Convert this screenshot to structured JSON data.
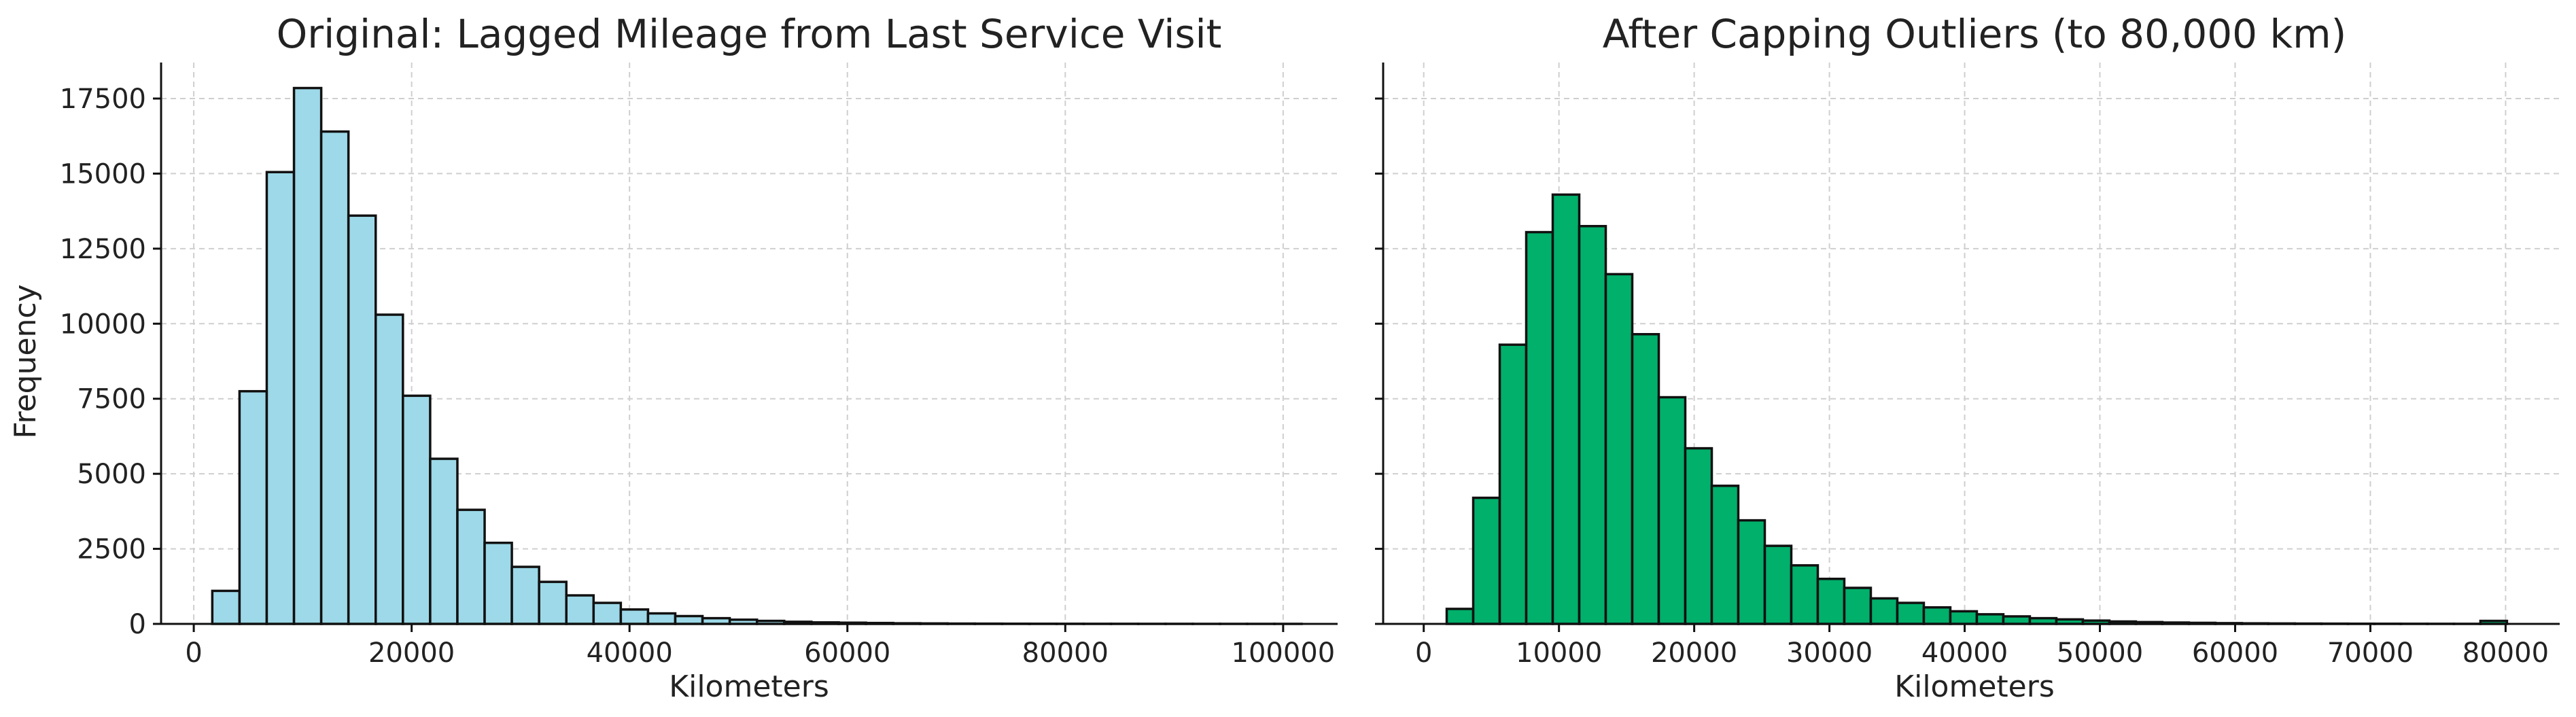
{
  "chart_data": [
    {
      "type": "bar",
      "title": "Original: Lagged Mileage from Last Service Visit",
      "xlabel": "Kilometers",
      "ylabel": "Frequency",
      "color": "#9dd9e8",
      "edge_color": "#111111",
      "xlim": [
        -3000,
        105000
      ],
      "ylim": [
        0,
        18700
      ],
      "xticks": [
        0,
        20000,
        40000,
        60000,
        80000,
        100000
      ],
      "yticks": [
        0,
        2500,
        5000,
        7500,
        10000,
        12500,
        15000,
        17500
      ],
      "grid": true,
      "bin_start": 1700,
      "bin_width": 2500,
      "values": [
        1100,
        7750,
        15050,
        17850,
        16400,
        13600,
        10300,
        7600,
        5500,
        3800,
        2700,
        1900,
        1400,
        950,
        700,
        480,
        350,
        260,
        190,
        140,
        100,
        70,
        50,
        40,
        30,
        20,
        15,
        10,
        8,
        6,
        5,
        4,
        3,
        3,
        2,
        2,
        1,
        1,
        1,
        1
      ]
    },
    {
      "type": "bar",
      "title": "After Capping Outliers (to 80,000 km)",
      "xlabel": "Kilometers",
      "ylabel": "",
      "color": "#00b06b",
      "edge_color": "#111111",
      "xlim": [
        -3000,
        84000
      ],
      "ylim": [
        0,
        18700
      ],
      "xticks": [
        0,
        10000,
        20000,
        30000,
        40000,
        50000,
        60000,
        70000,
        80000
      ],
      "yticks": [
        0,
        2500,
        5000,
        7500,
        10000,
        12500,
        15000,
        17500
      ],
      "grid": true,
      "bin_start": 1700,
      "bin_width": 1960,
      "values": [
        500,
        4200,
        9300,
        13050,
        14300,
        13250,
        11650,
        9650,
        7550,
        5850,
        4600,
        3450,
        2600,
        1950,
        1500,
        1200,
        850,
        700,
        550,
        420,
        320,
        250,
        190,
        150,
        110,
        80,
        60,
        45,
        35,
        25,
        18,
        14,
        10,
        8,
        6,
        5,
        4,
        3,
        2,
        100
      ]
    }
  ]
}
